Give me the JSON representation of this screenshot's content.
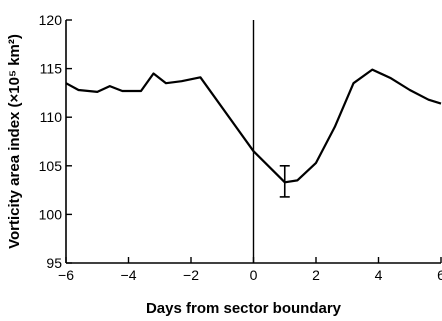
{
  "chart_data": {
    "type": "line",
    "title": "",
    "xlabel": "Days from sector boundary",
    "ylabel": "Vorticity area index (×10⁵ km²)",
    "xlim": [
      -6,
      6
    ],
    "ylim": [
      95,
      120
    ],
    "xticks": [
      -6,
      -4,
      -2,
      0,
      2,
      4,
      6
    ],
    "xtick_labels": [
      "−6",
      "−4",
      "−2",
      "0",
      "2",
      "4",
      "6"
    ],
    "yticks": [
      95,
      100,
      105,
      110,
      115,
      120
    ],
    "ytick_labels": [
      "95",
      "100",
      "105",
      "110",
      "115",
      "120"
    ],
    "grid": false,
    "vertical_line_at_x": 0,
    "series": [
      {
        "x": [
          -6,
          -5.6,
          -5.0,
          -4.6,
          -4.2,
          -3.6,
          -3.2,
          -2.8,
          -2.3,
          -1.7,
          0,
          1.0,
          1.4,
          2.0,
          2.6,
          3.2,
          3.8,
          4.4,
          5.0,
          5.6,
          6.0
        ],
        "y": [
          113.5,
          112.8,
          112.6,
          113.2,
          112.7,
          112.7,
          114.5,
          113.5,
          113.7,
          114.1,
          106.5,
          103.3,
          103.5,
          105.3,
          109.0,
          113.5,
          114.9,
          114.0,
          112.8,
          111.8,
          111.4
        ]
      }
    ],
    "error_bar": {
      "x": 1.0,
      "y": 103.4,
      "low": 101.8,
      "high": 105.0
    }
  }
}
